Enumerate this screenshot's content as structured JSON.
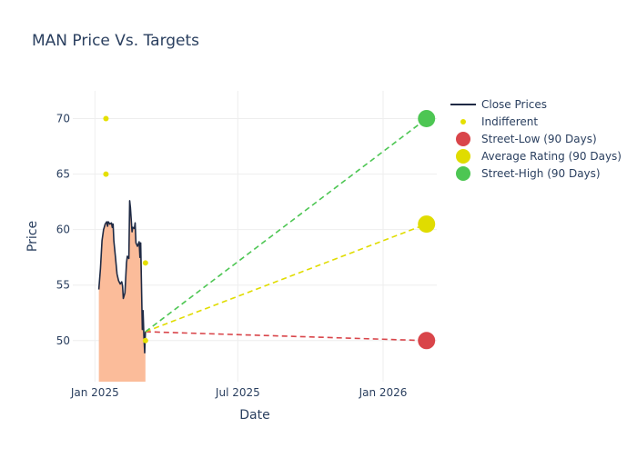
{
  "chart_data": {
    "type": "line",
    "title": "MAN Price Vs. Targets",
    "xlabel": "Date",
    "ylabel": "Price",
    "x_range": [
      "2024-12-04",
      "2026-03-10"
    ],
    "ylim": [
      46.3,
      72.5
    ],
    "grid": true,
    "legend_position": "top-right",
    "x_ticks": [
      {
        "date": "2025-01-01",
        "label": "Jan 2025"
      },
      {
        "date": "2025-07-01",
        "label": "Jul 2025"
      },
      {
        "date": "2026-01-01",
        "label": "Jan 2026"
      }
    ],
    "y_ticks": [
      50,
      55,
      60,
      65,
      70
    ],
    "colors": {
      "close": "#1f2a44",
      "area": "#fbbc9a",
      "indifferent": "#e5e000",
      "low": "#d9454a",
      "avg": "#e0dc00",
      "high": "#4dc653",
      "grid": "#eeeeee",
      "text": "#2a3f5f"
    },
    "series": [
      {
        "name": "Close Prices",
        "kind": "area-line",
        "points": [
          [
            "2025-01-06",
            54.6
          ],
          [
            "2025-01-08",
            56.5
          ],
          [
            "2025-01-10",
            59.0
          ],
          [
            "2025-01-12",
            60.0
          ],
          [
            "2025-01-14",
            60.5
          ],
          [
            "2025-01-16",
            60.7
          ],
          [
            "2025-01-17",
            60.3
          ],
          [
            "2025-01-18",
            60.7
          ],
          [
            "2025-01-20",
            60.5
          ],
          [
            "2025-01-22",
            60.6
          ],
          [
            "2025-01-23",
            60.2
          ],
          [
            "2025-01-24",
            60.5
          ],
          [
            "2025-01-25",
            59.0
          ],
          [
            "2025-01-27",
            57.5
          ],
          [
            "2025-01-29",
            56.0
          ],
          [
            "2025-01-31",
            55.4
          ],
          [
            "2025-02-02",
            55.1
          ],
          [
            "2025-02-04",
            55.3
          ],
          [
            "2025-02-05",
            54.9
          ],
          [
            "2025-02-06",
            53.8
          ],
          [
            "2025-02-08",
            54.3
          ],
          [
            "2025-02-10",
            57.0
          ],
          [
            "2025-02-11",
            57.6
          ],
          [
            "2025-02-13",
            57.4
          ],
          [
            "2025-02-14",
            62.6
          ],
          [
            "2025-02-15",
            62.0
          ],
          [
            "2025-02-17",
            59.8
          ],
          [
            "2025-02-18",
            60.2
          ],
          [
            "2025-02-20",
            60.1
          ],
          [
            "2025-02-21",
            60.6
          ],
          [
            "2025-02-22",
            58.8
          ],
          [
            "2025-02-24",
            58.5
          ],
          [
            "2025-02-26",
            58.9
          ],
          [
            "2025-02-27",
            57.5
          ],
          [
            "2025-02-28",
            58.8
          ],
          [
            "2025-03-02",
            51.0
          ],
          [
            "2025-03-03",
            52.7
          ],
          [
            "2025-03-04",
            50.5
          ],
          [
            "2025-03-05",
            48.9
          ],
          [
            "2025-03-06",
            50.8
          ]
        ]
      },
      {
        "name": "Indifferent",
        "kind": "markers",
        "points": [
          [
            "2025-01-15",
            70.0
          ],
          [
            "2025-01-15",
            65.0
          ],
          [
            "2025-03-06",
            57.0
          ],
          [
            "2025-03-06",
            50.0
          ]
        ]
      },
      {
        "name": "Street-Low (90 Days)",
        "kind": "target",
        "from": [
          "2025-03-06",
          50.8
        ],
        "to": [
          "2026-02-25",
          50.0
        ]
      },
      {
        "name": "Average Rating (90 Days)",
        "kind": "target",
        "from": [
          "2025-03-06",
          50.8
        ],
        "to": [
          "2026-02-25",
          60.5
        ]
      },
      {
        "name": "Street-High (90 Days)",
        "kind": "target",
        "from": [
          "2025-03-06",
          50.8
        ],
        "to": [
          "2026-02-25",
          70.0
        ]
      }
    ]
  }
}
